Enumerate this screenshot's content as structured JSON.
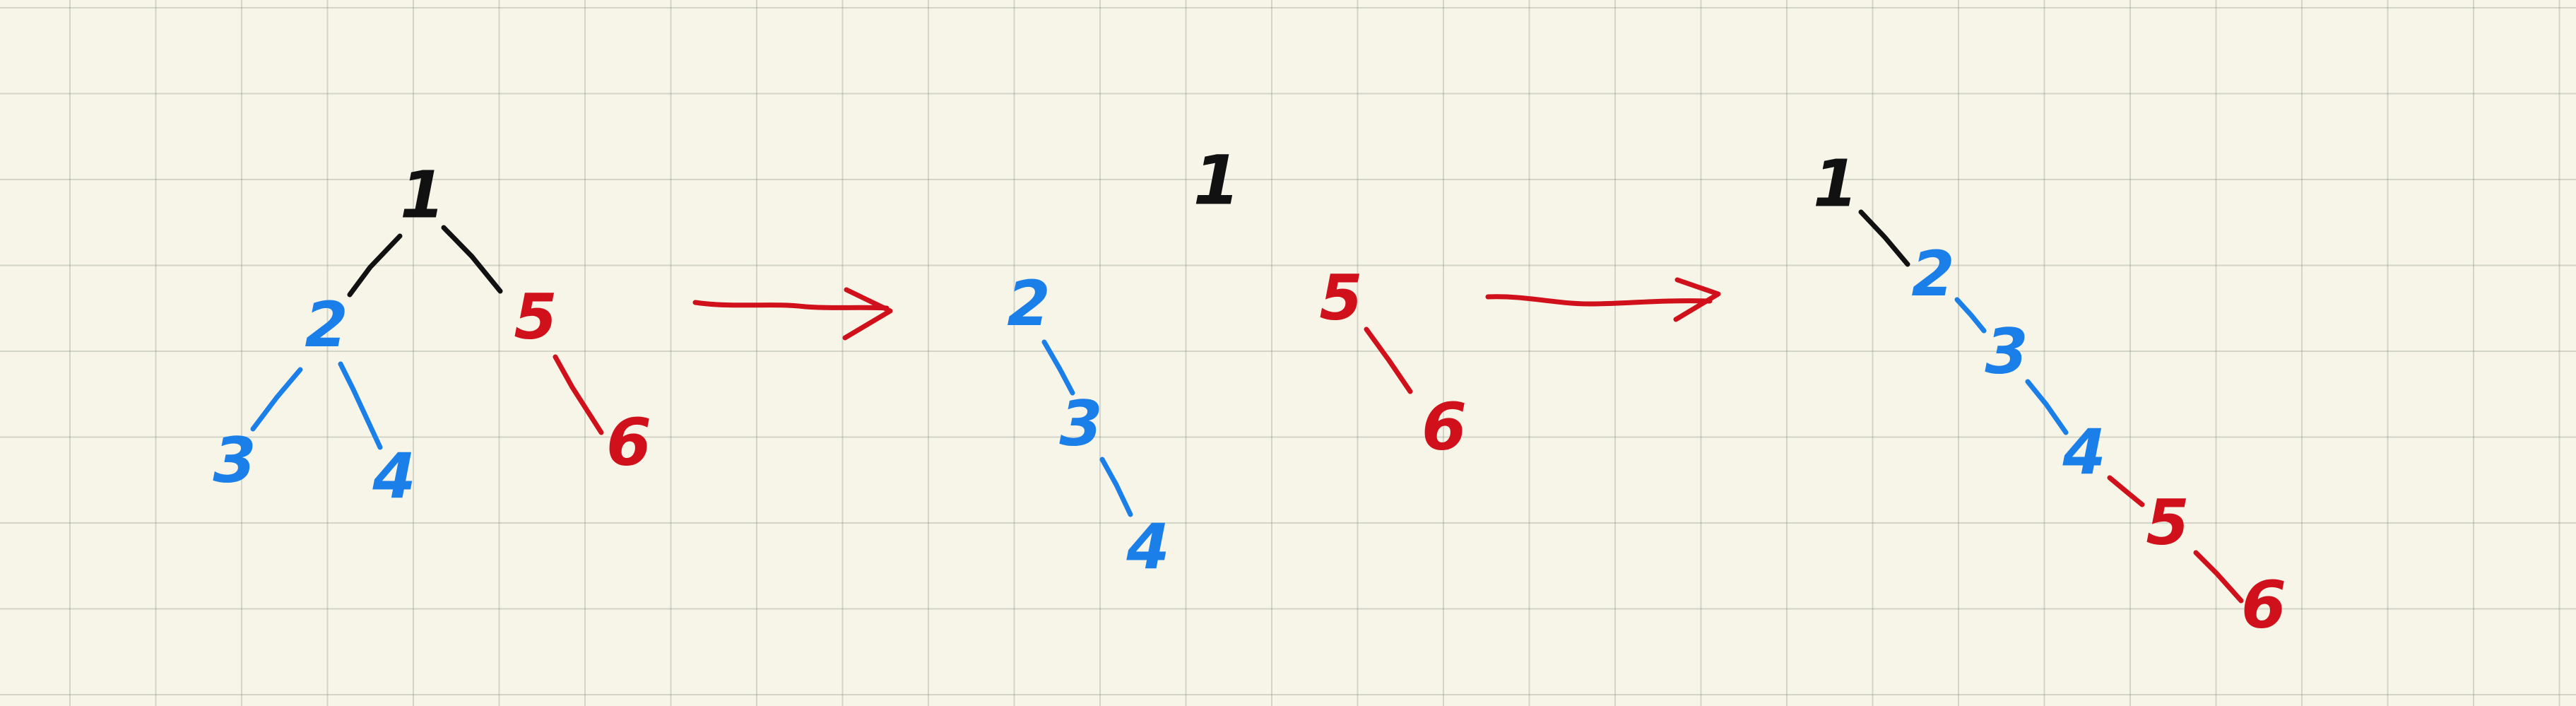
{
  "colors": {
    "black": "#111111",
    "blue": "#1a7fe8",
    "red": "#d0101a",
    "paper": "#f7f4e8",
    "grid": "#a9ae9e"
  },
  "diagrams": [
    {
      "nodes": [
        {
          "id": "d1-n1",
          "label": "1",
          "color": "black"
        },
        {
          "id": "d1-n2",
          "label": "2",
          "color": "blue"
        },
        {
          "id": "d1-n3",
          "label": "3",
          "color": "blue"
        },
        {
          "id": "d1-n4",
          "label": "4",
          "color": "blue"
        },
        {
          "id": "d1-n5",
          "label": "5",
          "color": "red"
        },
        {
          "id": "d1-n6",
          "label": "6",
          "color": "red"
        }
      ]
    },
    {
      "nodes": [
        {
          "id": "d2-n1",
          "label": "1",
          "color": "black"
        },
        {
          "id": "d2-n2",
          "label": "2",
          "color": "blue"
        },
        {
          "id": "d2-n3",
          "label": "3",
          "color": "blue"
        },
        {
          "id": "d2-n4",
          "label": "4",
          "color": "blue"
        },
        {
          "id": "d2-n5",
          "label": "5",
          "color": "red"
        },
        {
          "id": "d2-n6",
          "label": "6",
          "color": "red"
        }
      ]
    },
    {
      "nodes": [
        {
          "id": "d3-n1",
          "label": "1",
          "color": "black"
        },
        {
          "id": "d3-n2",
          "label": "2",
          "color": "blue"
        },
        {
          "id": "d3-n3",
          "label": "3",
          "color": "blue"
        },
        {
          "id": "d3-n4",
          "label": "4",
          "color": "blue"
        },
        {
          "id": "d3-n5",
          "label": "5",
          "color": "red"
        },
        {
          "id": "d3-n6",
          "label": "6",
          "color": "red"
        }
      ]
    }
  ]
}
